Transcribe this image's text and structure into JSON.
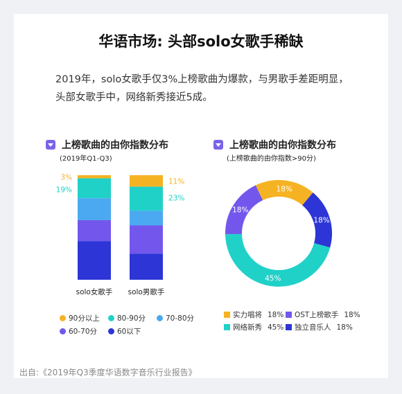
{
  "title": "华语市场: 头部solo女歌手稀缺",
  "description": [
    "2019年，solo女歌手仅3%上榜歌曲为爆款，与男歌手差距明显，",
    "头部女歌手中，网络新秀接近5成。"
  ],
  "left_section": {
    "title": "上榜歌曲的由你指数分布",
    "subtitle": "(2019年Q1-Q3)"
  },
  "right_section": {
    "title": "上榜歌曲的由你指数分布",
    "subtitle": "(上榜歌曲的由你指数>90分)"
  },
  "source": "出自:《2019年Q3季度华语数字音乐行业报告》",
  "colors": {
    "accent": "#7b62e8",
    "yellow": "#f5b324",
    "teal": "#20d1c8",
    "lightblue": "#4aa9f0",
    "purple": "#7357ec",
    "navy": "#2d35d6"
  },
  "chart_data": [
    {
      "type": "bar",
      "stacked": true,
      "categories": [
        "solo女歌手",
        "solo男歌手"
      ],
      "series": [
        {
          "name": "90分以上",
          "color": "#f5b324",
          "values": [
            3,
            11
          ]
        },
        {
          "name": "80-90分",
          "color": "#20d1c8",
          "values": [
            19,
            23
          ]
        },
        {
          "name": "70-80分",
          "color": "#4aa9f0",
          "values": [
            21,
            14
          ]
        },
        {
          "name": "60-70分",
          "color": "#7357ec",
          "values": [
            20,
            27
          ]
        },
        {
          "name": "60以下",
          "color": "#2d35d6",
          "values": [
            37,
            25
          ]
        }
      ],
      "labels": [
        {
          "text": [
            "3%",
            "19%"
          ],
          "colors": [
            "#f5b324",
            "#20d1c8"
          ],
          "side": "left"
        },
        {
          "text": [
            "11%",
            "23%"
          ],
          "colors": [
            "#f5b324",
            "#20d1c8"
          ],
          "side": "right"
        }
      ],
      "legend": "bottom"
    },
    {
      "type": "pie",
      "donut": true,
      "slices": [
        {
          "name": "独立音乐人",
          "value": 18,
          "label": "18%",
          "color": "#2d35d6"
        },
        {
          "name": "网络新秀",
          "value": 45,
          "label": "45%",
          "color": "#20d1c8"
        },
        {
          "name": "OST上榜歌手",
          "value": 18,
          "label": "18%",
          "color": "#7357ec"
        },
        {
          "name": "实力唱将",
          "value": 18,
          "label": "18%",
          "color": "#f5b324"
        }
      ],
      "legend": [
        {
          "name": "实力唱将",
          "value": "18%",
          "color": "#f5b324"
        },
        {
          "name": "OST上榜歌手",
          "value": "18%",
          "color": "#7357ec"
        },
        {
          "name": "网络新秀",
          "value": "45%",
          "color": "#20d1c8"
        },
        {
          "name": "独立音乐人",
          "value": "18%",
          "color": "#2d35d6"
        }
      ]
    }
  ]
}
